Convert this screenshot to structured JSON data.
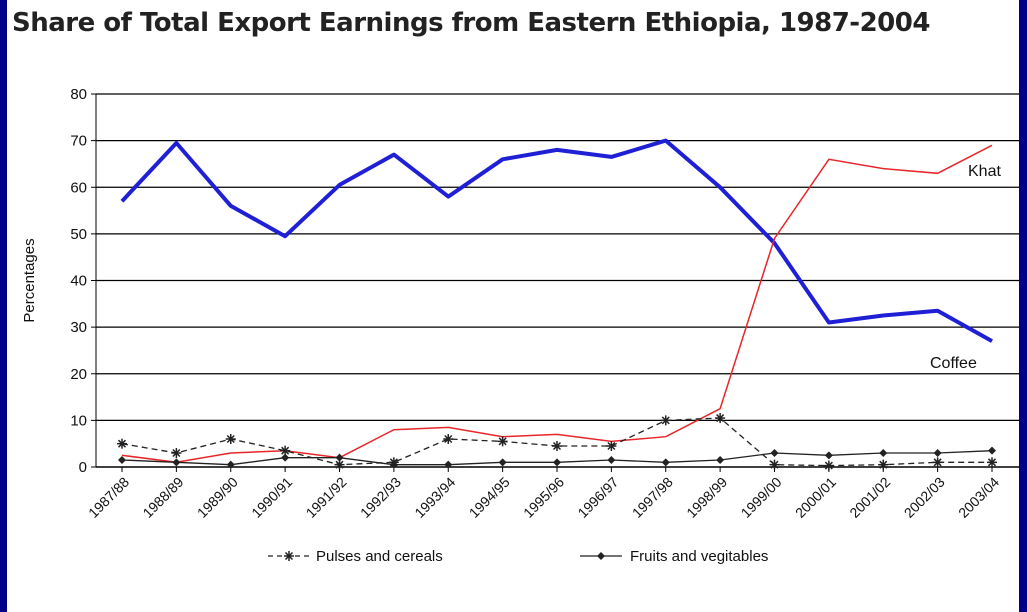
{
  "chart_data": {
    "type": "line",
    "title": "Share of Total Export Earnings from Eastern Ethiopia, 1987-2004",
    "xlabel": "",
    "ylabel": "Percentages",
    "ylim": [
      0,
      80
    ],
    "yticks": [
      0,
      10,
      20,
      30,
      40,
      50,
      60,
      70,
      80
    ],
    "grid": "horizontal",
    "categories": [
      "1987/88",
      "1988/89",
      "1989/90",
      "1990/91",
      "1991/92",
      "1992/93",
      "1993/94",
      "1994/95",
      "1995/96",
      "1996/97",
      "1997/98",
      "1998/99",
      "1999/00",
      "2000/01",
      "2001/02",
      "2002/03",
      "2003/04"
    ],
    "series": [
      {
        "name": "Coffee",
        "color": "#1f1fd6",
        "style": "thick-solid",
        "values": [
          57,
          69.5,
          56,
          49.5,
          60.5,
          67,
          58,
          66,
          68,
          66.5,
          70,
          60,
          48,
          31,
          32.5,
          33.5,
          27
        ]
      },
      {
        "name": "Khat",
        "color": "#e8262b",
        "style": "thin-solid",
        "values": [
          2.5,
          1,
          3,
          3.5,
          2,
          8,
          8.5,
          6.5,
          7,
          5.5,
          6.5,
          12.5,
          49,
          66,
          64,
          63,
          69
        ]
      },
      {
        "name": "Pulses and cereals",
        "color": "#222222",
        "style": "dashed-asterisk",
        "values": [
          5,
          3,
          6,
          3.5,
          0.5,
          1,
          6,
          5.5,
          4.5,
          4.5,
          10,
          10.5,
          0.5,
          0.3,
          0.5,
          1,
          1
        ]
      },
      {
        "name": "Fruits and vigitables",
        "color": "#222222",
        "style": "solid-diamond",
        "values": [
          1.5,
          1,
          0.5,
          2,
          2,
          0.5,
          0.5,
          1,
          1,
          1.5,
          1,
          1.5,
          3,
          2.5,
          3,
          3,
          3.5
        ]
      }
    ],
    "legend": [
      {
        "label": "Pulses and cereals",
        "marker": "asterisk-dashed"
      },
      {
        "label": "Fruits and vegitables",
        "marker": "diamond-solid"
      }
    ]
  }
}
